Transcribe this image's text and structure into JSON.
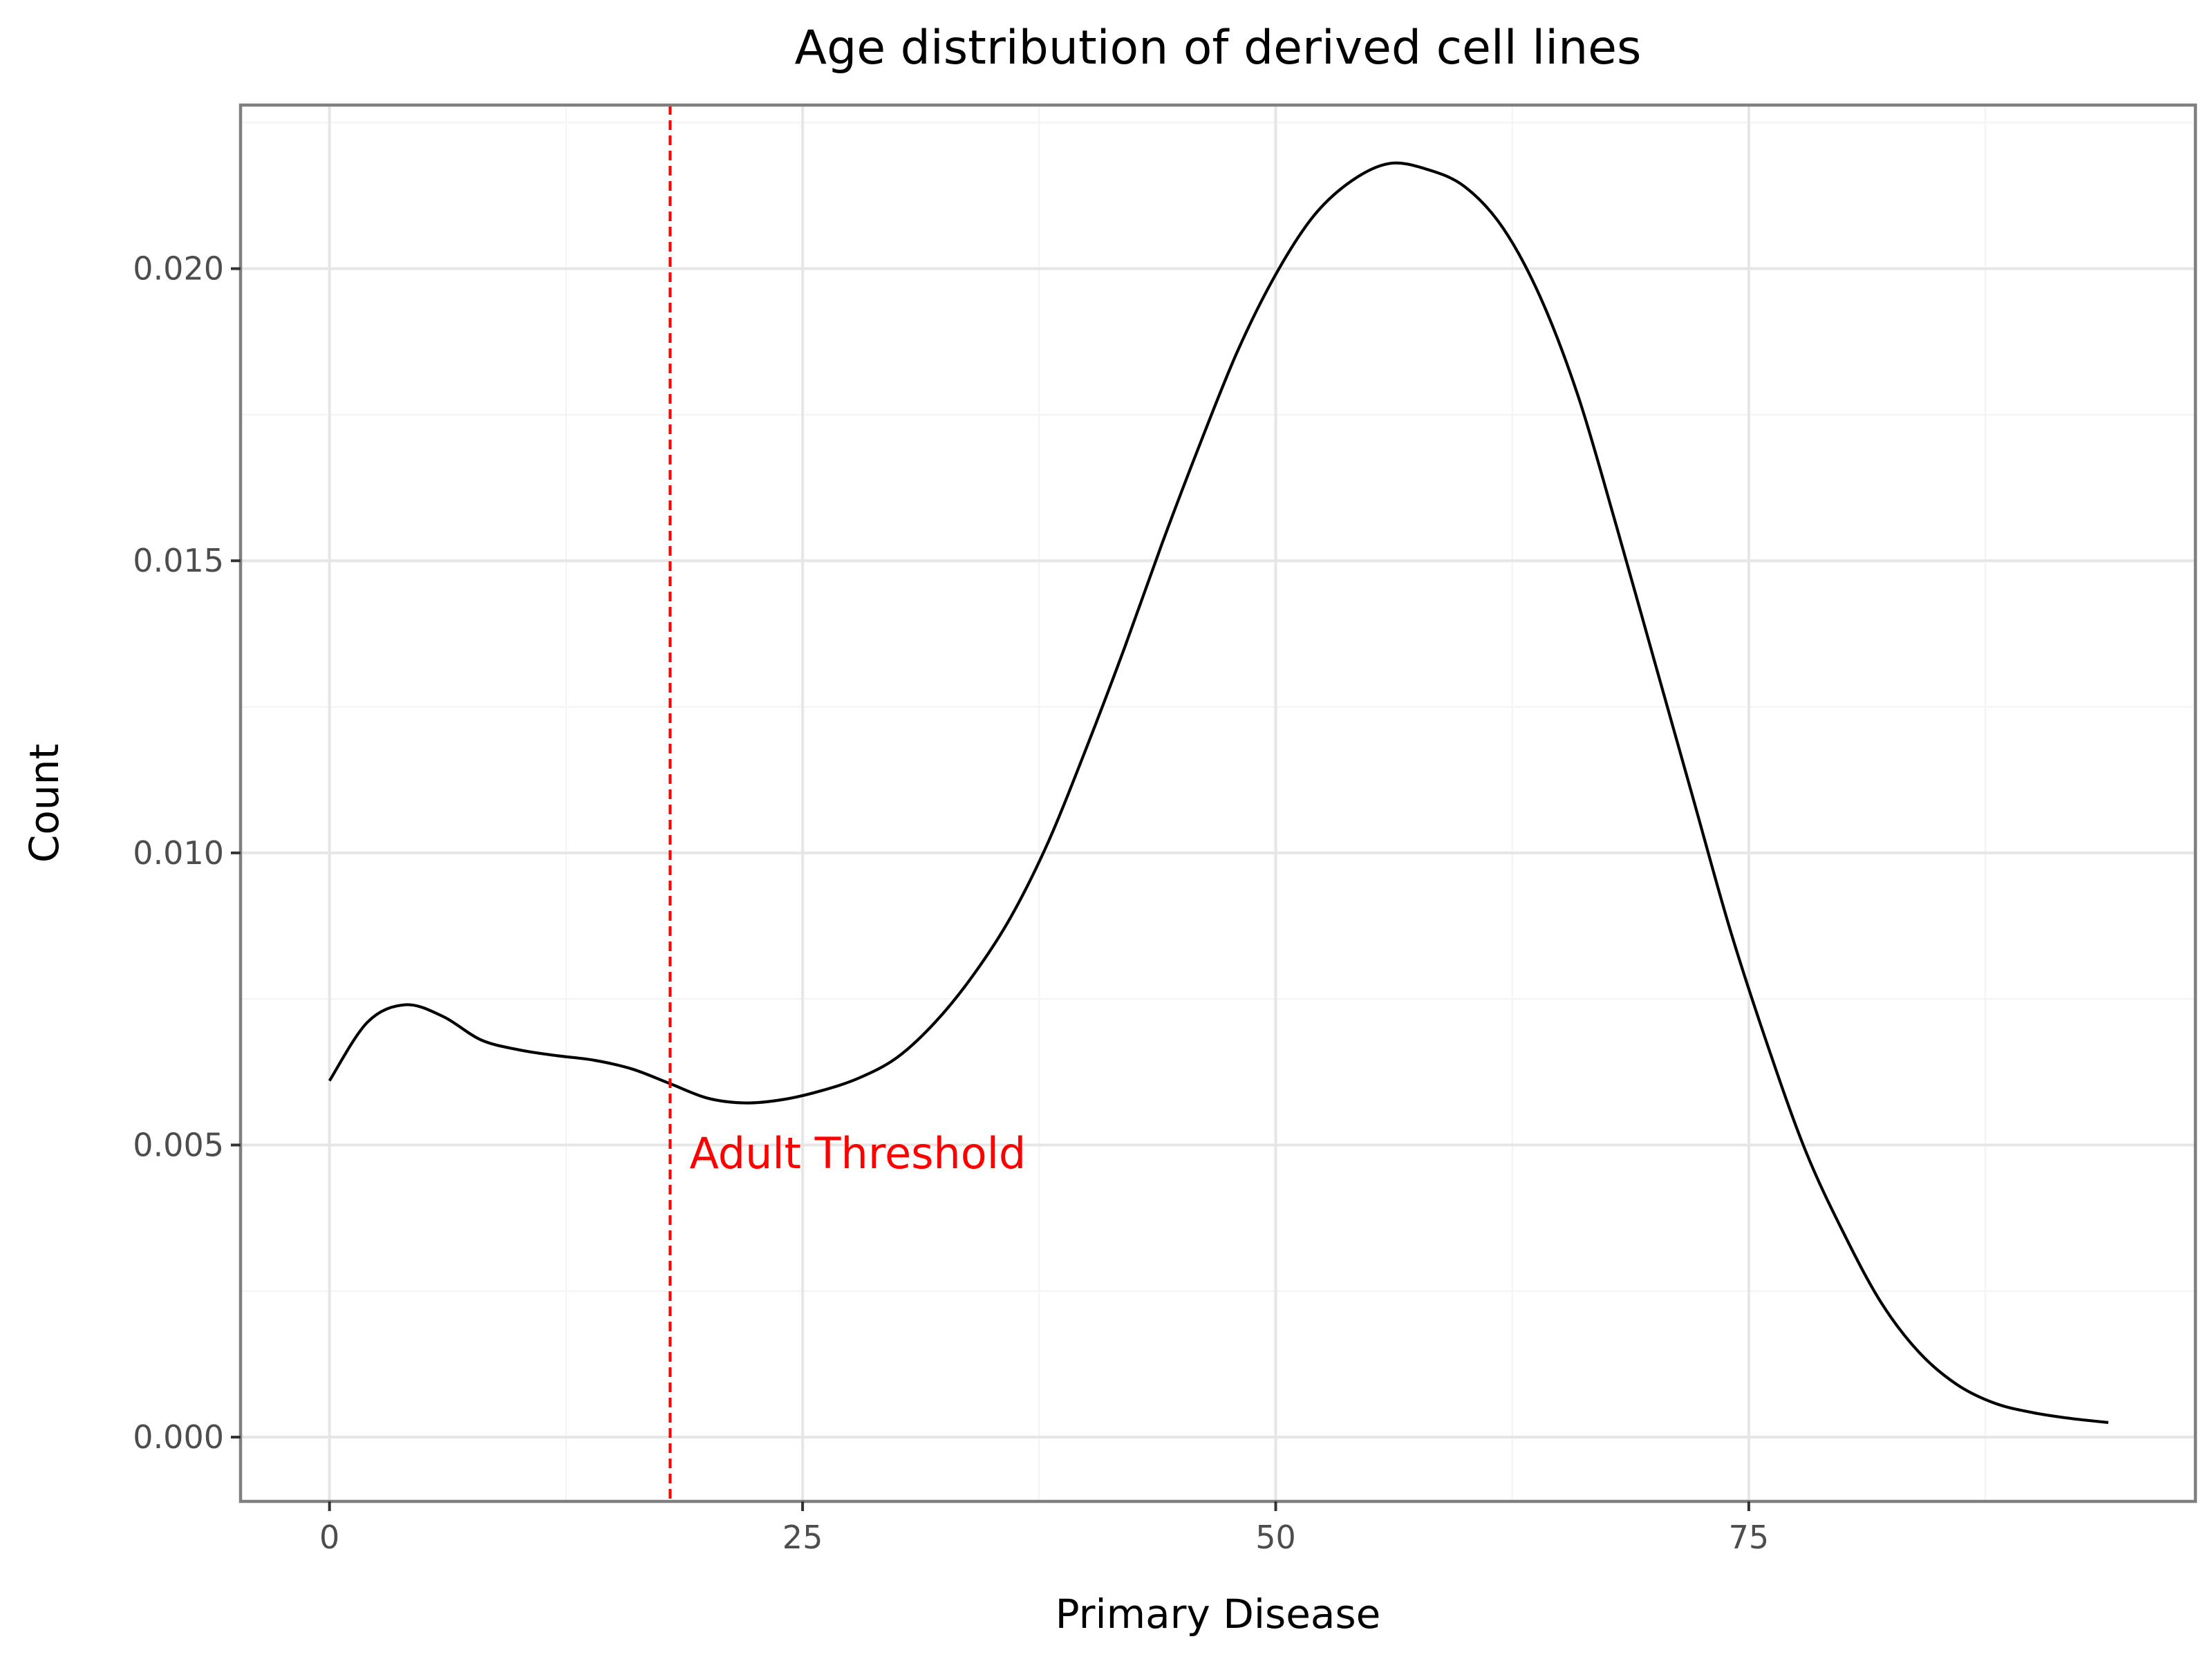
{
  "chart_data": {
    "type": "line",
    "title": "Age distribution of derived cell lines",
    "xlabel": "Primary Disease",
    "ylabel": "Count",
    "xlim": [
      -4.7,
      98.6
    ],
    "ylim": [
      -0.0011,
      0.0228
    ],
    "x_ticks": [
      0,
      25,
      50,
      75
    ],
    "x_tick_labels": [
      "0",
      "25",
      "50",
      "75"
    ],
    "x_minor_ticks": [
      12.5,
      37.5,
      62.5,
      87.5
    ],
    "y_ticks": [
      0.0,
      0.005,
      0.01,
      0.015,
      0.02
    ],
    "y_tick_labels": [
      "0.000",
      "0.005",
      "0.010",
      "0.015",
      "0.020"
    ],
    "y_minor_ticks": [
      0.0025,
      0.0075,
      0.0125,
      0.0175,
      0.0225
    ],
    "grid": true,
    "legend": "none",
    "series": [
      {
        "color": "#000000",
        "x": [
          0,
          2,
          4,
          6,
          8,
          10,
          12,
          14,
          16,
          18,
          20,
          22,
          24,
          26,
          28,
          30,
          32,
          34,
          36,
          38,
          40,
          42,
          44,
          46,
          48,
          50,
          52,
          54,
          56,
          58,
          60,
          62,
          64,
          66,
          68,
          70,
          72,
          74,
          76,
          78,
          80,
          82,
          84,
          86,
          88,
          90,
          92,
          94
        ],
        "y": [
          0.0061,
          0.0071,
          0.0074,
          0.0072,
          0.0068,
          0.00663,
          0.00653,
          0.00645,
          0.0063,
          0.00605,
          0.0058,
          0.00572,
          0.00578,
          0.00593,
          0.00615,
          0.0065,
          0.0071,
          0.0079,
          0.0089,
          0.0102,
          0.0118,
          0.0135,
          0.0153,
          0.017,
          0.0186,
          0.0199,
          0.0209,
          0.0215,
          0.0218,
          0.0217,
          0.0214,
          0.0207,
          0.0195,
          0.0178,
          0.0156,
          0.0133,
          0.011,
          0.0087,
          0.0067,
          0.0049,
          0.0035,
          0.0023,
          0.00145,
          0.0009,
          0.00058,
          0.00042,
          0.00032,
          0.00025
        ]
      }
    ],
    "vline": {
      "x": 18,
      "color": "#ff0000",
      "style": "dashed",
      "label": "Adult Threshold",
      "label_y": 0.0046
    }
  }
}
